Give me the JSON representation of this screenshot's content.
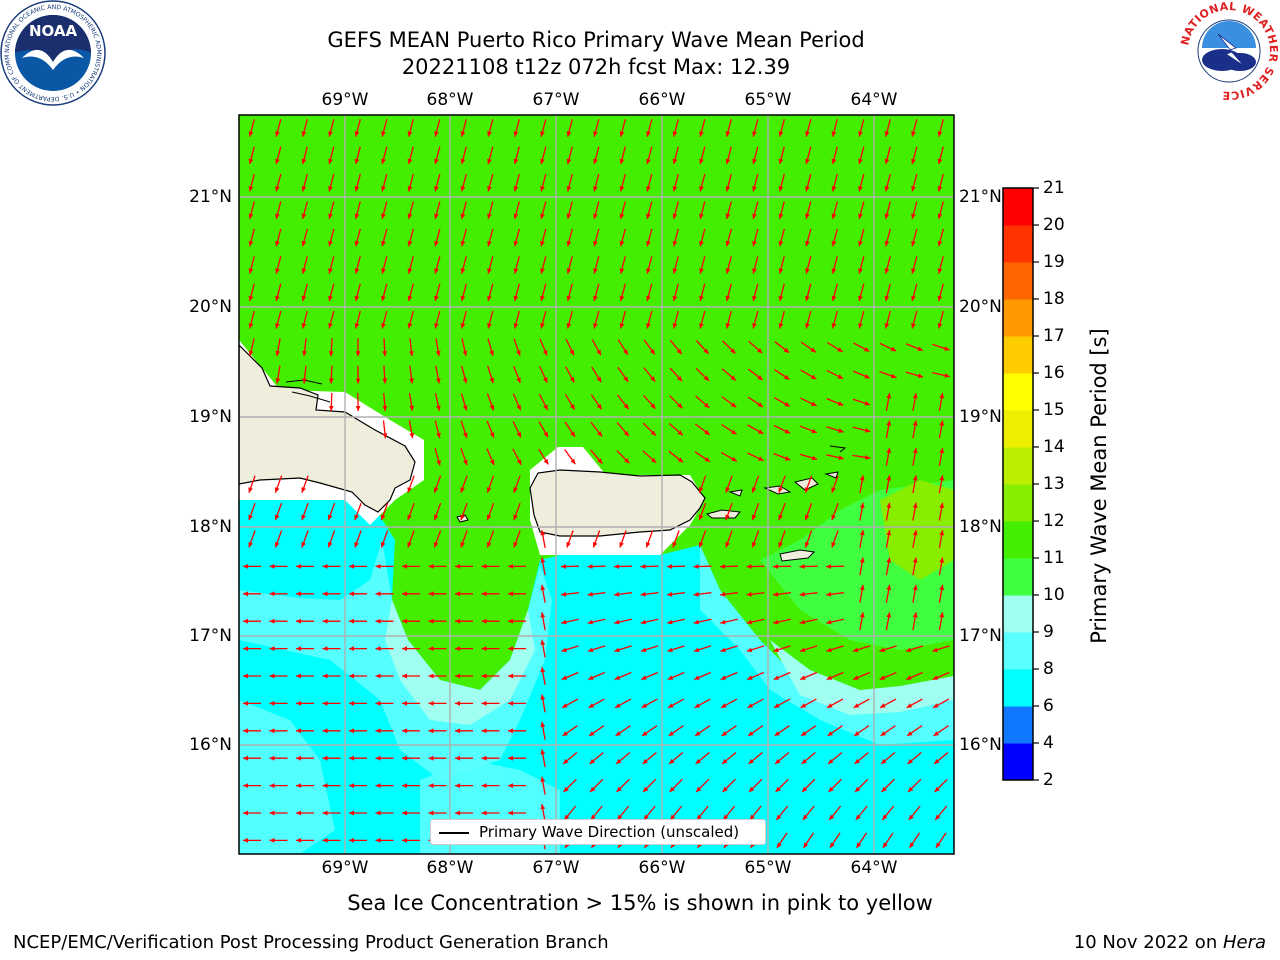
{
  "header": {
    "title_line1": "GEFS MEAN Puerto Rico Primary Wave Mean Period",
    "title_line2": "20221108 t12z 072h fcst   Max: 12.39"
  },
  "logos": {
    "left": {
      "text": "NOAA",
      "ring_text": "NATIONAL OCEANIC AND ATMOSPHERIC ADMINISTRATION • U.S. DEPARTMENT OF COMMERCE",
      "icon": "noaa-logo-icon"
    },
    "right": {
      "text": "NATIONAL WEATHER SERVICE",
      "icon": "nws-logo-icon"
    }
  },
  "map": {
    "lon_labels": [
      "69°W",
      "68°W",
      "67°W",
      "66°W",
      "65°W",
      "64°W"
    ],
    "lat_labels": [
      "21°N",
      "20°N",
      "19°N",
      "18°N",
      "17°N",
      "16°N"
    ],
    "lon_range": [
      -70.0,
      -63.25
    ],
    "lat_range": [
      15.0,
      21.75
    ],
    "grid": true,
    "legend_label": "Primary Wave Direction (unscaled)",
    "arrow_color": "#ff0000",
    "land_color": "#efeddc"
  },
  "colorbar": {
    "label": "Primary Wave Mean Period [s]",
    "ticks": [
      "2",
      "4",
      "6",
      "8",
      "9",
      "10",
      "11",
      "12",
      "13",
      "14",
      "15",
      "16",
      "17",
      "18",
      "19",
      "20",
      "21"
    ],
    "colors": [
      "#0000ff",
      "#0f78ff",
      "#00ffff",
      "#5affff",
      "#a0fff0",
      "#40ff40",
      "#44ee00",
      "#88ee00",
      "#bbee00",
      "#eeee00",
      "#ffff00",
      "#ffcc00",
      "#ff9900",
      "#ff6600",
      "#ff3300",
      "#ff0000"
    ]
  },
  "chart_data": {
    "type": "map",
    "title": "GEFS MEAN Puerto Rico Primary Wave Mean Period",
    "subtitle": "20221108 t12z 072h fcst   Max: 12.39",
    "max_value": 12.39,
    "units": "s",
    "colorbar_bounds": [
      2,
      4,
      6,
      8,
      9,
      10,
      11,
      12,
      13,
      14,
      15,
      16,
      17,
      18,
      19,
      20,
      21
    ]
  },
  "note": "Sea Ice Concentration > 15% is shown in pink to yellow",
  "footer": {
    "left": "NCEP/EMC/Verification Post Processing Product Generation Branch",
    "date": "10 Nov 2022 on ",
    "host": "Hera"
  }
}
